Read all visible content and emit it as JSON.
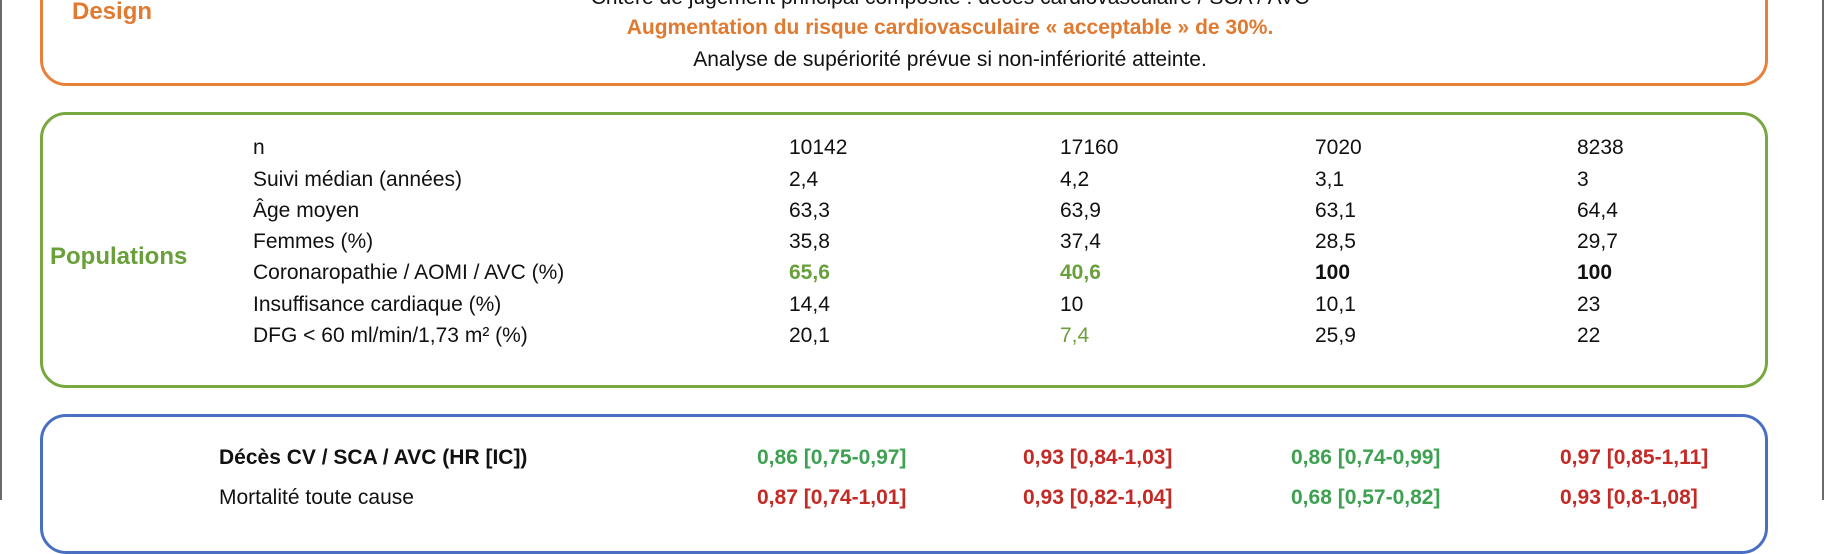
{
  "design": {
    "label": "Design",
    "lines": [
      "Critère de jugement principal composite : décès cardiovasculaire / SCA / AVC",
      "Augmentation du risque cardiovasculaire « acceptable » de 30%.",
      "Analyse de supériorité prévue si non-infériorité atteinte."
    ]
  },
  "populations": {
    "label": "Populations",
    "rows": [
      {
        "label": "n",
        "values": [
          "10142",
          "17160",
          "7020",
          "8238"
        ],
        "styles": [
          "",
          "",
          "",
          ""
        ]
      },
      {
        "label": "Suivi médian (années)",
        "values": [
          "2,4",
          "4,2",
          "3,1",
          "3"
        ],
        "styles": [
          "",
          "",
          "",
          ""
        ]
      },
      {
        "label": "Âge moyen",
        "values": [
          "63,3",
          "63,9",
          "63,1",
          "64,4"
        ],
        "styles": [
          "",
          "",
          "",
          ""
        ]
      },
      {
        "label": "Femmes (%)",
        "values": [
          "35,8",
          "37,4",
          "28,5",
          "29,7"
        ],
        "styles": [
          "",
          "",
          "",
          ""
        ]
      },
      {
        "label": "Coronaropathie / AOMI / AVC (%)",
        "values": [
          "65,6",
          "40,6",
          "100",
          "100"
        ],
        "styles": [
          "green",
          "green",
          "bold",
          "bold"
        ]
      },
      {
        "label": "Insuffisance cardiaque (%)",
        "values": [
          "14,4",
          "10",
          "10,1",
          "23"
        ],
        "styles": [
          "",
          "",
          "",
          ""
        ]
      },
      {
        "label": "DFG < 60 ml/min/1,73 m² (%)",
        "values": [
          "20,1",
          "7,4",
          "25,9",
          "22"
        ],
        "styles": [
          "",
          "green-plain",
          "",
          ""
        ]
      }
    ]
  },
  "results": {
    "rows": [
      {
        "label": "Décès CV / SCA / AVC (HR [IC])",
        "values": [
          "0,86 [0,75-0,97]",
          "0,93 [0,84-1,03]",
          "0,86 [0,74-0,99]",
          "0,97 [0,85-1,11]"
        ],
        "colors": [
          "#3ea152",
          "#c42a25",
          "#3ea152",
          "#c42a25"
        ],
        "bold_label": true
      },
      {
        "label": "Mortalité toute cause",
        "values": [
          "0,87 [0,74-1,01]",
          "0,93 [0,82-1,04]",
          "0,68 [0,57-0,82]",
          "0,93 [0,8-1,08]"
        ],
        "colors": [
          "#c42a25",
          "#c42a25",
          "#3ea152",
          "#c42a25"
        ],
        "bold_label": false
      }
    ]
  }
}
